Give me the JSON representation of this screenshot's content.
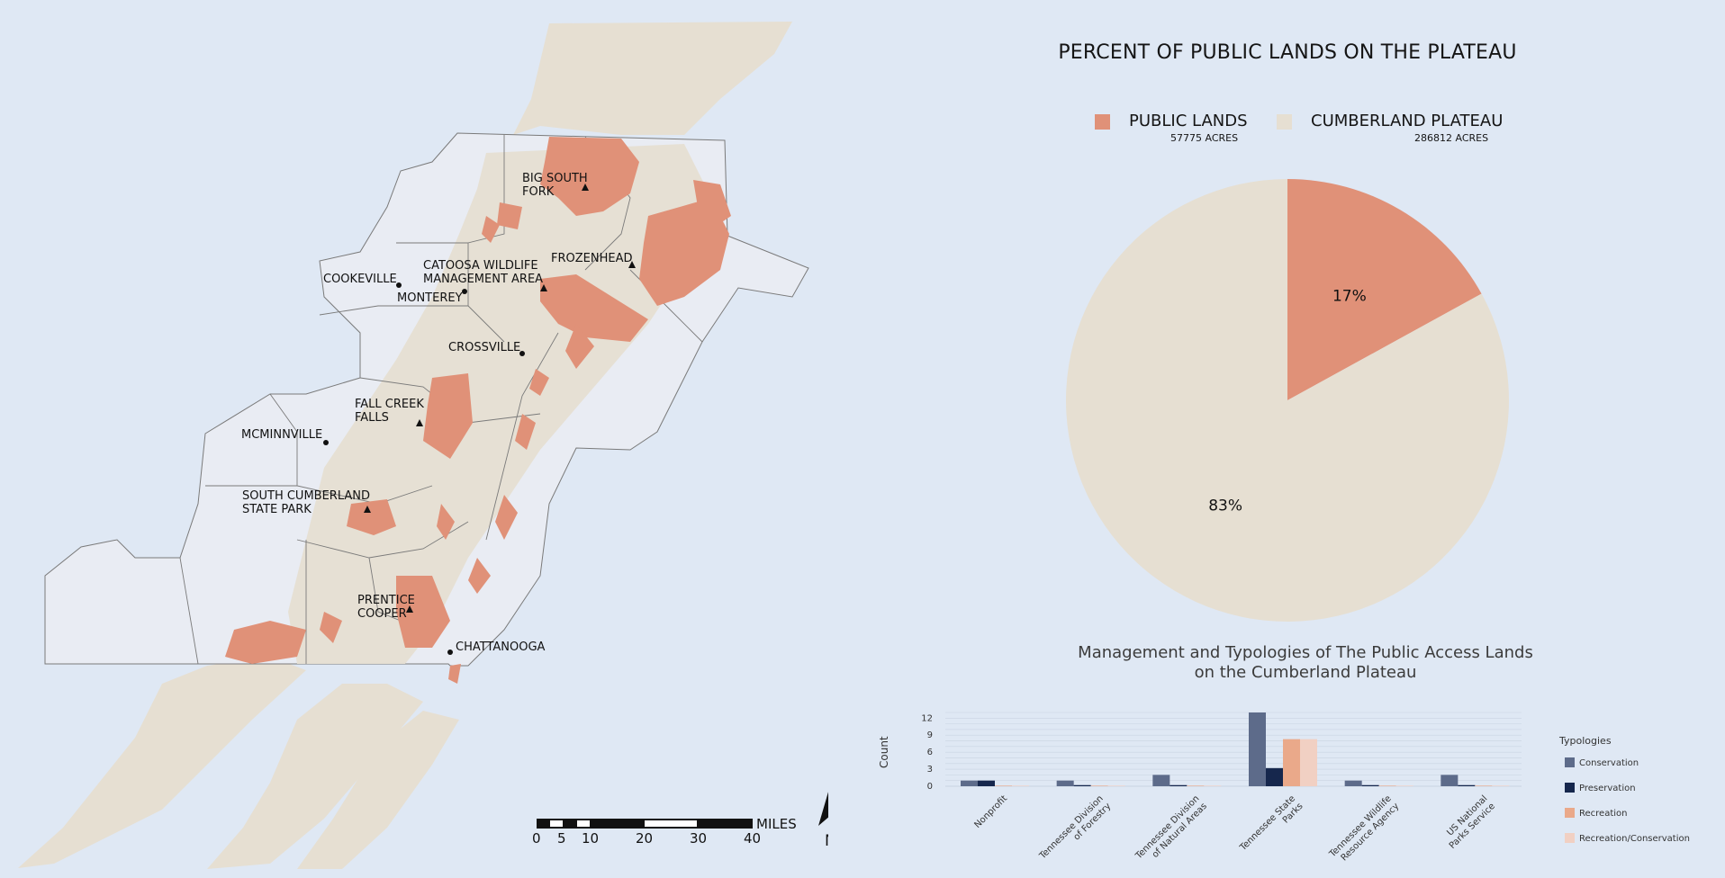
{
  "map": {
    "places": {
      "big_south_fork": [
        "BIG SOUTH",
        "FORK"
      ],
      "frozenhead": "FROZENHEAD",
      "catoosa": [
        "CATOOSA WILDLIFE",
        "MANAGEMENT AREA"
      ],
      "cookeville": "COOKEVILLE",
      "monterey": "MONTEREY",
      "crossville": "CROSSVILLE",
      "fall_creek_falls": [
        "FALL CREEK",
        "FALLS"
      ],
      "mcminnville": "MCMINNVILLE",
      "south_cumberland": [
        "SOUTH CUMBERLAND",
        "STATE PARK"
      ],
      "prentice_cooper": [
        "PRENTICE",
        "COOPER"
      ],
      "chattanooga": "CHATTANOOGA"
    },
    "scale_bar": {
      "unit": "MILES",
      "ticks": [
        "0",
        "5",
        "10",
        "20",
        "30",
        "40"
      ]
    },
    "north_arrow": "N",
    "colors": {
      "background": "#dfe8f4",
      "plateau": "#e6dfd2",
      "public_lands": "#e09178",
      "county_fill": "#e9ecf3",
      "county_border": "#7a7a7a"
    }
  },
  "pie": {
    "title": "PERCENT OF PUBLIC LANDS ON THE PLATEAU",
    "legend": [
      {
        "name": "PUBLIC LANDS",
        "acres": "57775 ACRES",
        "color": "#e09178"
      },
      {
        "name": "CUMBERLAND PLATEAU",
        "acres": "286812 ACRES",
        "color": "#e6dfd2"
      }
    ]
  },
  "chart_data": [
    {
      "type": "pie",
      "title": "PERCENT OF PUBLIC LANDS ON THE PLATEAU",
      "slices": [
        {
          "name": "PUBLIC LANDS",
          "value": 17,
          "label": "17%",
          "color": "#e09178"
        },
        {
          "name": "CUMBERLAND PLATEAU",
          "value": 83,
          "label": "83%",
          "color": "#e6dfd2"
        }
      ]
    },
    {
      "type": "bar",
      "title": [
        "Management and Typologies of The Public Access Lands",
        "on the Cumberland Plateau"
      ],
      "ylabel": "Count",
      "ylim": [
        0,
        13
      ],
      "yticks": [
        "0",
        "3",
        "6",
        "9",
        "12"
      ],
      "categories": [
        [
          "Nonprofit"
        ],
        [
          "Tennessee Division",
          "of Forestry"
        ],
        [
          "Tennessee Division",
          "of Natural Areas"
        ],
        [
          "Tennessee State",
          "Parks"
        ],
        [
          "Tennessee Wildlife",
          "Resource Agency"
        ],
        [
          "US National",
          "Parks Service"
        ]
      ],
      "legend_title": "Typologies",
      "series": [
        {
          "name": "Conservation",
          "color": "#5d6b8a",
          "values": [
            1,
            1,
            2,
            13,
            1,
            2
          ]
        },
        {
          "name": "Preservation",
          "color": "#16274d",
          "values": [
            1,
            0.2,
            0.2,
            3.2,
            0.2,
            0.2
          ]
        },
        {
          "name": "Recreation",
          "color": "#eaa98a",
          "values": [
            0.1,
            0.1,
            0.1,
            8.3,
            0.1,
            0.1
          ]
        },
        {
          "name": "Recreation/Conservation",
          "color": "#f1d0c3",
          "values": [
            0.1,
            0.1,
            0.1,
            8.3,
            0.1,
            0.1
          ]
        }
      ]
    }
  ]
}
